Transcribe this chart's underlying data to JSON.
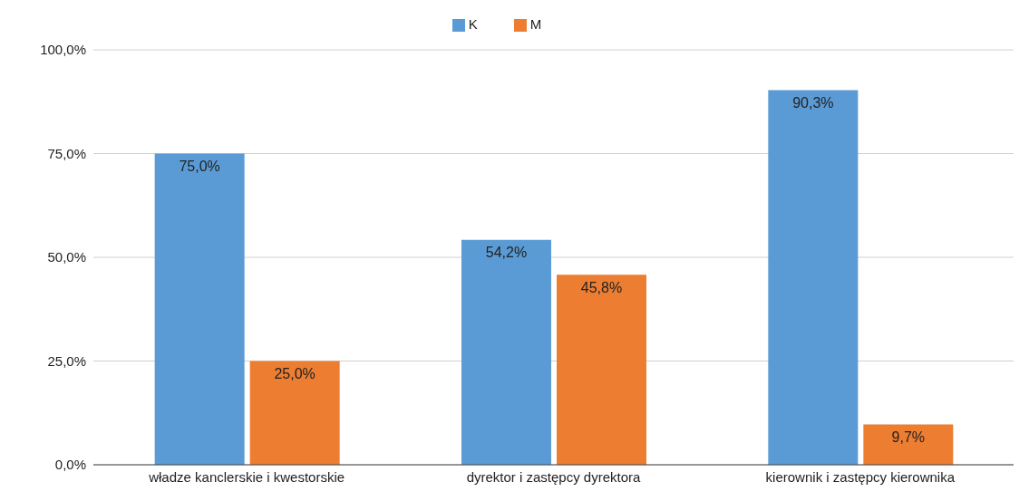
{
  "chart_data": {
    "type": "bar",
    "categories": [
      "władze kanclerskie i kwestorskie",
      "dyrektor i zastępcy dyrektora",
      "kierownik i zastępcy kierownika"
    ],
    "series": [
      {
        "name": "K",
        "color": "#5b9bd5",
        "values": [
          75.0,
          54.2,
          90.3
        ],
        "value_labels": [
          "75,0%",
          "54,2%",
          "90,3%"
        ]
      },
      {
        "name": "M",
        "color": "#ed7d31",
        "values": [
          25.0,
          45.8,
          9.7
        ],
        "value_labels": [
          "25,0%",
          "45,8%",
          "9,7%"
        ]
      }
    ],
    "ylim": [
      0,
      100
    ],
    "yticks": [
      {
        "value": 0,
        "label": "0,0%"
      },
      {
        "value": 25,
        "label": "25,0%"
      },
      {
        "value": 50,
        "label": "50,0%"
      },
      {
        "value": 75,
        "label": "75,0%"
      },
      {
        "value": 100,
        "label": "100,0%"
      }
    ],
    "grid": "y",
    "legend": "top"
  }
}
